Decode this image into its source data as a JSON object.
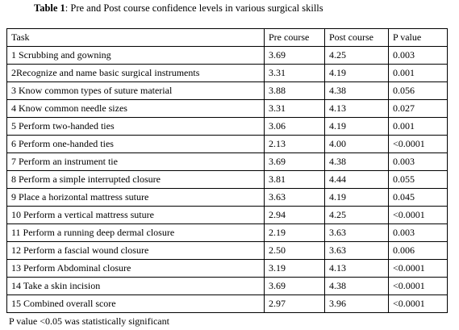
{
  "title": {
    "label": "Table 1",
    "text": ": Pre and Post course confidence levels in various surgical skills"
  },
  "table": {
    "header": [
      "Task",
      "Pre course",
      "Post course",
      "P value"
    ],
    "rows": [
      [
        "1 Scrubbing and gowning",
        "3.69",
        "4.25",
        "0.003"
      ],
      [
        "2Recognize and name basic surgical instruments",
        "3.31",
        "4.19",
        "0.001"
      ],
      [
        "3 Know common types of suture material",
        "3.88",
        "4.38",
        "0.056"
      ],
      [
        "4 Know common needle sizes",
        "3.31",
        "4.13",
        "0.027"
      ],
      [
        "5 Perform two-handed ties",
        "3.06",
        "4.19",
        "0.001"
      ],
      [
        "6 Perform one-handed ties",
        "2.13",
        "4.00",
        "<0.0001"
      ],
      [
        "7 Perform an instrument tie",
        "3.69",
        "4.38",
        "0.003"
      ],
      [
        "8 Perform a simple interrupted closure",
        "3.81",
        "4.44",
        "0.055"
      ],
      [
        "9 Place a horizontal mattress suture",
        "3.63",
        "4.19",
        "0.045"
      ],
      [
        "10 Perform a vertical mattress suture",
        "2.94",
        "4.25",
        "<0.0001"
      ],
      [
        "11 Perform a running deep dermal closure",
        "2.19",
        "3.63",
        "0.003"
      ],
      [
        "12 Perform a fascial wound closure",
        "2.50",
        "3.63",
        "0.006"
      ],
      [
        "13 Perform Abdominal closure",
        "3.19",
        "4.13",
        "<0.0001"
      ],
      [
        "14 Take a skin incision",
        "3.69",
        "4.38",
        "<0.0001"
      ],
      [
        "15 Combined overall score",
        "2.97",
        "3.96",
        "<0.0001"
      ]
    ]
  },
  "footnote": "P value <0.05 was statistically significant"
}
